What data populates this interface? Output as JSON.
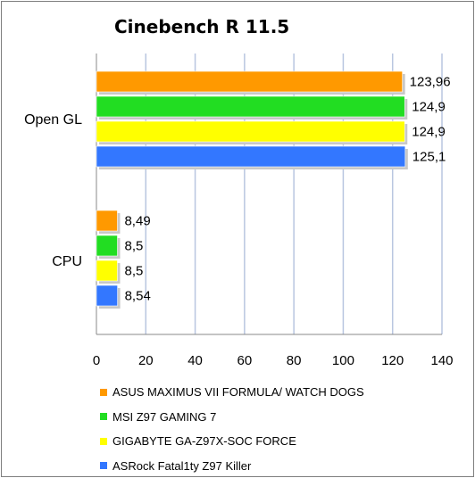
{
  "chart_data": {
    "type": "bar",
    "orientation": "horizontal",
    "title": "Cinebench R 11.5",
    "categories": [
      "Open GL",
      "CPU"
    ],
    "xlim": [
      0,
      140
    ],
    "xticks": [
      "0",
      "20",
      "40",
      "60",
      "80",
      "100",
      "120",
      "140"
    ],
    "grid": "vertical",
    "legend_position": "bottom",
    "series": [
      {
        "name": "ASUS MAXIMUS VII FORMULA/ WATCH DOGS",
        "color": "#ff9900",
        "values": [
          123.96,
          8.49
        ],
        "labels": [
          "123,96",
          "8,49"
        ]
      },
      {
        "name": "MSI Z97 GAMING 7",
        "color": "#22dd22",
        "values": [
          124.9,
          8.5
        ],
        "labels": [
          "124,9",
          "8,5"
        ]
      },
      {
        "name": "GIGABYTE GA-Z97X-SOC FORCE",
        "color": "#ffff00",
        "values": [
          124.9,
          8.5
        ],
        "labels": [
          "124,9",
          "8,5"
        ]
      },
      {
        "name": "ASRock Fatal1ty Z97 Killer",
        "color": "#3377ff",
        "values": [
          125.1,
          8.54
        ],
        "labels": [
          "125,1",
          "8,54"
        ]
      }
    ]
  }
}
